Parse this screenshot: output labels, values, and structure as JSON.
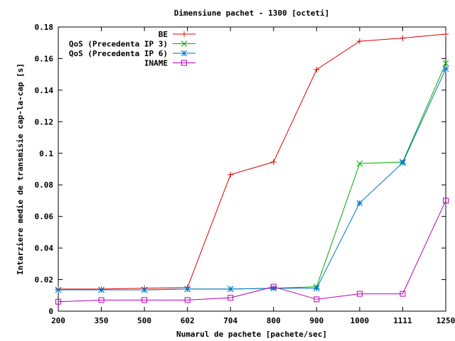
{
  "chart_data": {
    "type": "line",
    "title": "Dimensiune pachet - 1300 [octeti]",
    "xlabel": "Numarul de pachete [pachete/sec]",
    "ylabel": "Intarziere medie de transmisie cap-la-cap [s]",
    "categories": [
      "200",
      "350",
      "500",
      "602",
      "704",
      "800",
      "900",
      "1000",
      "1111",
      "1250"
    ],
    "ylim": [
      0,
      0.18
    ],
    "yticks": [
      "0",
      "0.02",
      "0.04",
      "0.06",
      "0.08",
      "0.1",
      "0.12",
      "0.14",
      "0.16",
      "0.18"
    ],
    "grid": false,
    "legend_position": "top-left",
    "series": [
      {
        "name": "BE",
        "color": "#dd0000",
        "marker": "plus",
        "values": [
          0.014,
          0.014,
          0.0145,
          0.015,
          0.0865,
          0.0945,
          0.153,
          0.171,
          0.173,
          0.1755
        ]
      },
      {
        "name": "QoS (Precedenta IP 3)",
        "color": "#00aa00",
        "marker": "x",
        "values": [
          0.0135,
          0.0135,
          0.0135,
          0.014,
          0.014,
          0.0145,
          0.0155,
          0.0935,
          0.0945,
          0.157
        ]
      },
      {
        "name": "QoS (Precedenta IP 6)",
        "color": "#0070d0",
        "marker": "star",
        "values": [
          0.0135,
          0.0135,
          0.0135,
          0.014,
          0.014,
          0.0145,
          0.0145,
          0.0685,
          0.094,
          0.1535
        ]
      },
      {
        "name": "INAME",
        "color": "#bb00bb",
        "marker": "square",
        "values": [
          0.006,
          0.007,
          0.007,
          0.007,
          0.0085,
          0.0155,
          0.0075,
          0.011,
          0.011,
          0.07
        ]
      }
    ]
  }
}
